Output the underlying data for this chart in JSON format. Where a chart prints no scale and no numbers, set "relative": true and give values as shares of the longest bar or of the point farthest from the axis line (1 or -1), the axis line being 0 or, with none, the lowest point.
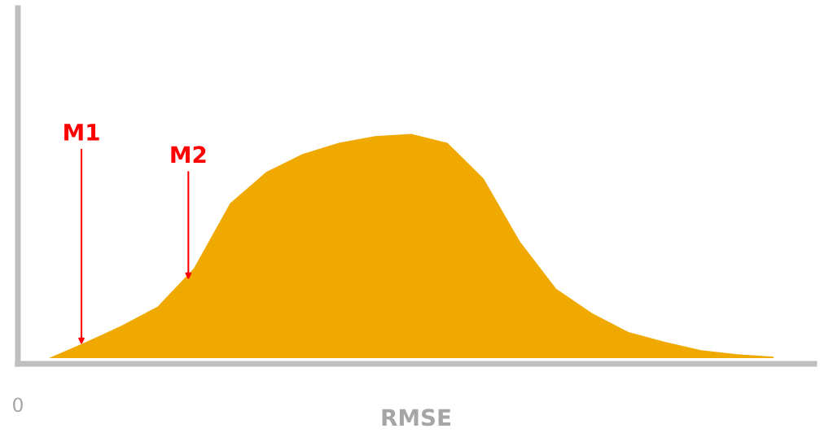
{
  "chart_data": {
    "type": "area",
    "relative": true,
    "xlabel": "RMSE",
    "categories": [
      null,
      null,
      null,
      null,
      null,
      null,
      null,
      null,
      null,
      null,
      null,
      null,
      null,
      null,
      null,
      null,
      null,
      null,
      null,
      null,
      null
    ],
    "series": [
      {
        "color": "#f0a900",
        "values": [
          0,
          0.07,
          0.145,
          0.23,
          0.4,
          0.69,
          0.83,
          0.91,
          0.96,
          0.99,
          1.0,
          0.96,
          0.8,
          0.52,
          0.31,
          0.2,
          0.116,
          0.073,
          0.036,
          0.018,
          0.007
        ]
      }
    ],
    "annotations": [
      "M1",
      "M2",
      "0"
    ]
  }
}
